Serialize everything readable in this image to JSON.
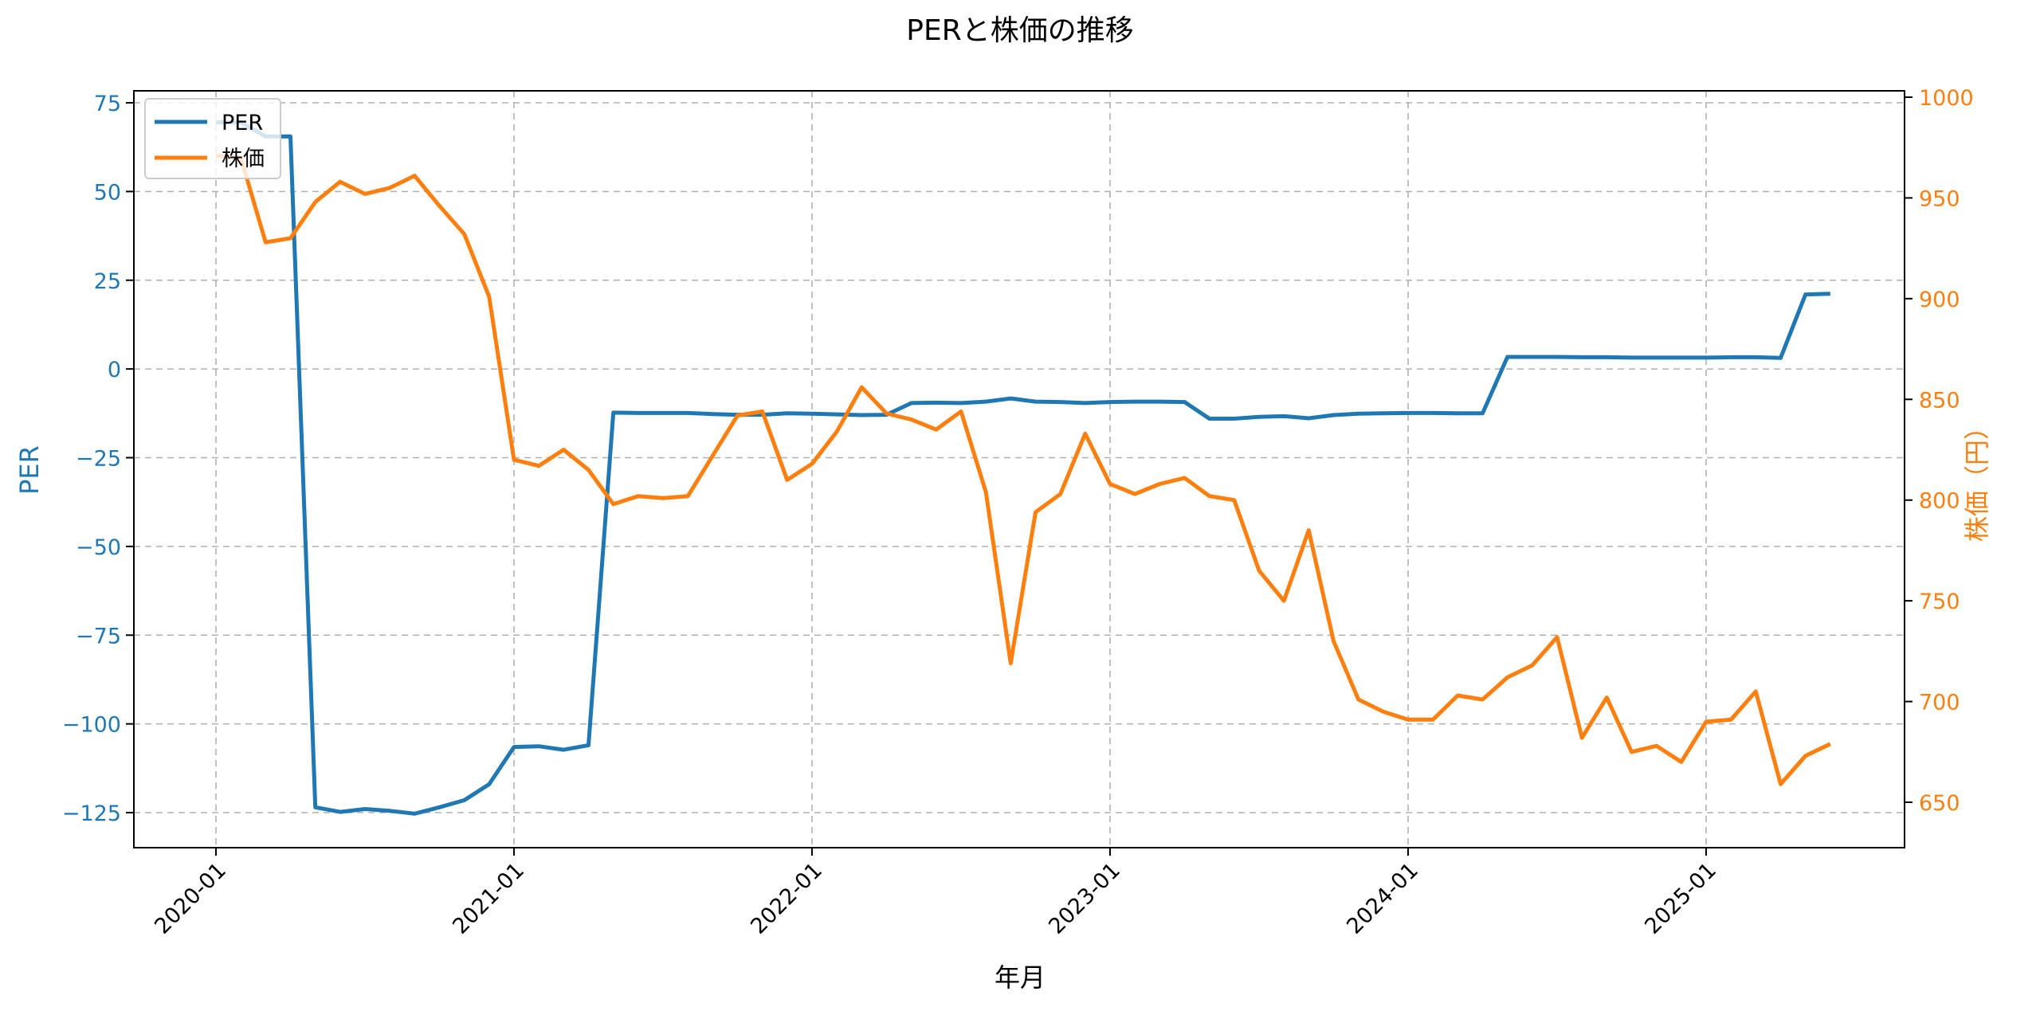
{
  "chart_data": {
    "type": "line",
    "title": "PERと株価の推移",
    "xlabel": "年月",
    "ylabel_left": "PER",
    "ylabel_right": "株価（円）",
    "x_tick_labels": [
      "2020-01",
      "2021-01",
      "2022-01",
      "2023-01",
      "2024-01",
      "2025-01"
    ],
    "y_left_ticks": [
      75,
      50,
      25,
      0,
      -25,
      -50,
      -75,
      -100,
      -125
    ],
    "y_left_tick_labels": [
      "75",
      "50",
      "25",
      "0",
      "−25",
      "−50",
      "−75",
      "−100",
      "−125"
    ],
    "y_right_ticks": [
      1000,
      950,
      900,
      850,
      800,
      750,
      700,
      650
    ],
    "y_left_lim": [
      -135,
      78
    ],
    "y_right_lim": [
      627,
      1003
    ],
    "grid": true,
    "legend_position": "upper left",
    "legend": [
      "PER",
      "株価"
    ],
    "colors": {
      "PER": "#1f77b4",
      "株価": "#ff7f0e"
    },
    "x": [
      "2020-01",
      "2020-02",
      "2020-03",
      "2020-04",
      "2020-05",
      "2020-06",
      "2020-07",
      "2020-08",
      "2020-09",
      "2020-10",
      "2020-11",
      "2020-12",
      "2021-01",
      "2021-02",
      "2021-03",
      "2021-04",
      "2021-05",
      "2021-06",
      "2021-07",
      "2021-08",
      "2021-09",
      "2021-10",
      "2021-11",
      "2021-12",
      "2022-01",
      "2022-02",
      "2022-03",
      "2022-04",
      "2022-05",
      "2022-06",
      "2022-07",
      "2022-08",
      "2022-09",
      "2022-10",
      "2022-11",
      "2022-12",
      "2023-01",
      "2023-02",
      "2023-03",
      "2023-04",
      "2023-05",
      "2023-06",
      "2023-07",
      "2023-08",
      "2023-09",
      "2023-10",
      "2023-11",
      "2023-12",
      "2024-01",
      "2024-02",
      "2024-03",
      "2024-04",
      "2024-05",
      "2024-06",
      "2024-07",
      "2024-08",
      "2024-09",
      "2024-10",
      "2024-11",
      "2024-12",
      "2025-01",
      "2025-02",
      "2025-03",
      "2025-04",
      "2025-05",
      "2025-06"
    ],
    "series": [
      {
        "name": "PER",
        "axis": "left",
        "values": [
          69.5,
          69.5,
          65.5,
          65.5,
          -123.5,
          -124.8,
          -124.0,
          -124.5,
          -125.3,
          -123.5,
          -121.5,
          -117.0,
          -106.5,
          -106.3,
          -107.3,
          -106.0,
          -12.3,
          -12.4,
          -12.4,
          -12.4,
          -12.7,
          -12.9,
          -12.9,
          -12.5,
          -12.6,
          -12.8,
          -13.0,
          -12.9,
          -9.6,
          -9.5,
          -9.6,
          -9.2,
          -8.3,
          -9.2,
          -9.3,
          -9.6,
          -9.3,
          -9.2,
          -9.2,
          -9.3,
          -14.0,
          -14.0,
          -13.5,
          -13.3,
          -13.9,
          -13.0,
          -12.6,
          -12.5,
          -12.4,
          -12.4,
          -12.5,
          -12.5,
          3.4,
          3.4,
          3.4,
          3.3,
          3.3,
          3.2,
          3.2,
          3.2,
          3.2,
          3.3,
          3.3,
          3.1,
          21.0,
          21.2
        ]
      },
      {
        "name": "株価",
        "axis": "right",
        "values": [
          971,
          970,
          928,
          930,
          948,
          958,
          952,
          955,
          961,
          946,
          932,
          901,
          820,
          817,
          825,
          815,
          798,
          802,
          801,
          802,
          822,
          842,
          844,
          810,
          818,
          834,
          856,
          843,
          840,
          835,
          844,
          804,
          719,
          794,
          803,
          833,
          808,
          803,
          808,
          811,
          802,
          800,
          765,
          750,
          785,
          730,
          701,
          695,
          691,
          691,
          703,
          701,
          712,
          718,
          732,
          682,
          702,
          675,
          678,
          670,
          690,
          691,
          705,
          659,
          673,
          679
        ]
      }
    ]
  }
}
